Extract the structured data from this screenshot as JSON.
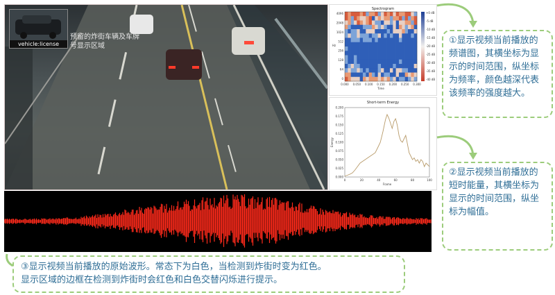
{
  "video": {
    "overlay_text": "预留的炸街车辆及车牌号显示区域",
    "thumbnail_caption": "vehicle:license"
  },
  "spectrogram": {
    "title": "Spectrogram",
    "ylabel": "Hz",
    "xlabel": "Time",
    "y_ticks": [
      "4096",
      "2048",
      "1024",
      "512",
      "256",
      "128",
      "64",
      "0"
    ],
    "x_ticks": [
      "0.000",
      "0.050",
      "0.100",
      "0.150",
      "0.200",
      "0.250",
      "0.300"
    ],
    "colorbar_ticks": [
      "+0 dB",
      "-5 dB",
      "-10 dB",
      "-15 dB",
      "-20 dB",
      "-25 dB",
      "-30 dB",
      "-35 dB",
      "-40 dB"
    ]
  },
  "chart_data": {
    "type": "line",
    "title": "Short-term Energy",
    "xlabel": "Frame",
    "ylabel": "Energy",
    "xlim": [
      0,
      100
    ],
    "ylim": [
      0,
      0.2
    ],
    "x_ticks": [
      "0",
      "20",
      "40",
      "60",
      "80",
      "100"
    ],
    "y_ticks": [
      "0.200",
      "0.175",
      "0.150",
      "0.125",
      "0.100",
      "0.075",
      "0.050",
      "0.025",
      "0.000"
    ],
    "x": [
      0,
      3,
      6,
      9,
      12,
      15,
      18,
      21,
      24,
      27,
      30,
      33,
      36,
      39,
      42,
      45,
      48,
      50,
      52,
      54,
      56,
      58,
      60,
      62,
      64,
      66,
      68,
      70,
      72,
      74,
      76,
      78,
      80,
      82,
      84,
      86,
      88,
      90,
      92,
      94,
      96,
      98,
      100
    ],
    "y": [
      0.003,
      0.005,
      0.008,
      0.012,
      0.02,
      0.03,
      0.04,
      0.045,
      0.05,
      0.055,
      0.06,
      0.065,
      0.07,
      0.085,
      0.1,
      0.13,
      0.165,
      0.18,
      0.17,
      0.155,
      0.14,
      0.16,
      0.168,
      0.15,
      0.12,
      0.105,
      0.1,
      0.11,
      0.12,
      0.095,
      0.07,
      0.06,
      0.05,
      0.055,
      0.045,
      0.05,
      0.04,
      0.05,
      0.045,
      0.03,
      0.04,
      0.035,
      0.03
    ]
  },
  "notes": {
    "note1": "①显示视频当前播放的频谱图，其横坐标为显示的时间范围，纵坐标为频率，颜色越深代表该频率的强度越大。",
    "note2": "②显示视频当前播放的短时能量，其横坐标为显示的时间范围，纵坐标为幅值。",
    "note3_line1": "③显示视频当前播放的原始波形。常态下为白色，当检测到炸街时变为红色。",
    "note3_line2": "显示区域的边框在检测到炸街时会红色和白色交替闪烁进行提示。"
  },
  "colors": {
    "accent_green": "#9ccc7b",
    "note_text": "#2f6e96",
    "wave_red": "#ff2a1a"
  }
}
